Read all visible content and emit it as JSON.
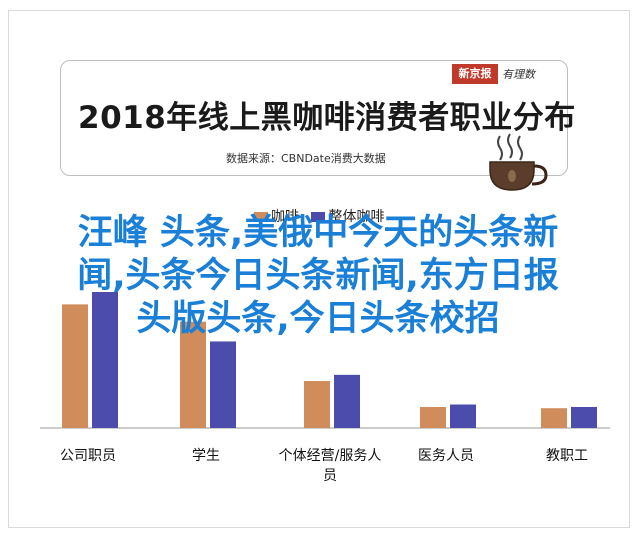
{
  "header": {
    "title": "2018年线上黑咖啡消费者职业分布",
    "source": "数据来源：CBNDate消费大数据",
    "logo_brand": "新京报",
    "logo_sub": "有理数"
  },
  "overlay": {
    "lines": [
      "汪峰 头条,美俄中今天的头条新",
      "闻,头条今日头条新闻,东方日报",
      "头版头条,今日头条校招"
    ]
  },
  "legend": {
    "items": [
      "咖啡",
      "整体咖啡"
    ]
  },
  "colors": {
    "series_a": "#d08c5a",
    "series_b": "#4c4cad",
    "overlay_text": "#1a7fd6"
  },
  "chart_data": {
    "type": "bar",
    "categories": [
      "公司职员",
      "学生",
      "个体经营/服务人员",
      "医务人员",
      "教职工"
    ],
    "series": [
      {
        "name": "咖啡",
        "values": [
          100,
          86,
          38,
          17,
          16
        ]
      },
      {
        "name": "整体咖啡",
        "values": [
          110,
          70,
          43,
          19,
          17
        ]
      }
    ],
    "ylim": [
      0,
      110
    ],
    "grid": false
  }
}
